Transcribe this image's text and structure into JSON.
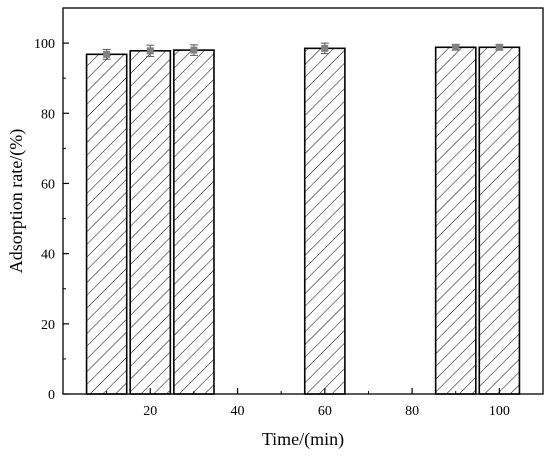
{
  "chart_data": {
    "type": "bar",
    "title": "",
    "xlabel": "Time/(min)",
    "ylabel": "Adsorption rate/(%)",
    "x": [
      10,
      20,
      30,
      60,
      90,
      100
    ],
    "values": [
      96.8,
      97.8,
      98.0,
      98.5,
      98.8,
      98.8
    ],
    "errors": [
      1.4,
      1.6,
      1.5,
      1.5,
      0.8,
      0.7
    ],
    "xlim": [
      0,
      110
    ],
    "ylim": [
      0,
      110
    ],
    "xticks": [
      20,
      40,
      60,
      80,
      100
    ],
    "yticks": [
      0,
      20,
      40,
      60,
      80,
      100
    ],
    "grid": false,
    "legend": "none",
    "bar_pattern": "diagonal-hatch",
    "colors": {
      "bar_fill": "#ffffff",
      "bar_edge": "#000000",
      "marker": "#808080"
    }
  }
}
